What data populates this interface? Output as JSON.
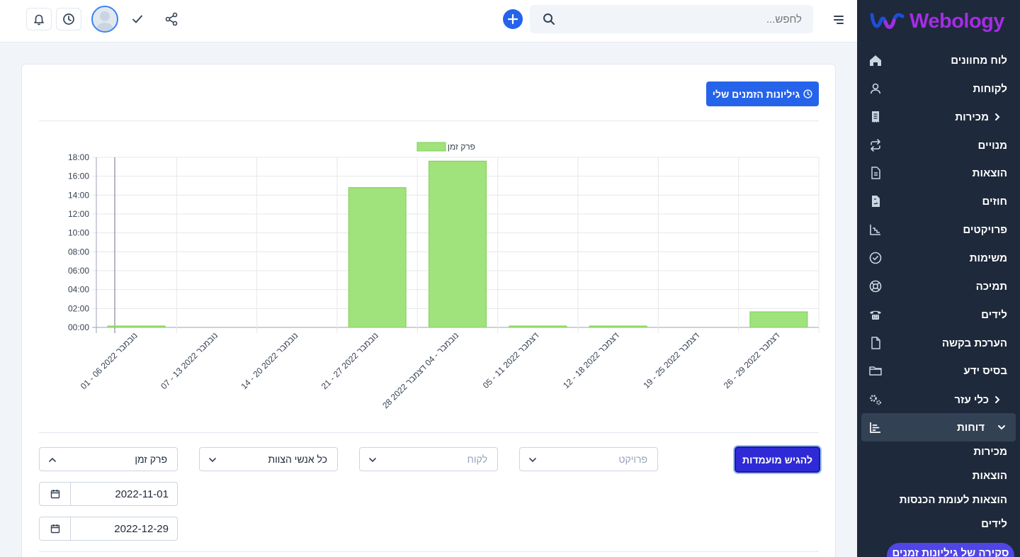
{
  "brand": {
    "name": "Webology",
    "logo_color": "#a32de3",
    "logo_mark_color": "#1d4ed8"
  },
  "sidebar": {
    "items": [
      {
        "label": "לוח מחוונים",
        "icon": "home-icon"
      },
      {
        "label": "לקוחות",
        "icon": "user-icon"
      },
      {
        "label": "מכירות",
        "icon": "receipt-icon",
        "expandable": true
      },
      {
        "label": "מנויים",
        "icon": "repeat-icon"
      },
      {
        "label": "הוצאות",
        "icon": "file-text-icon"
      },
      {
        "label": "חוזים",
        "icon": "file-contract-icon"
      },
      {
        "label": "פרויקטים",
        "icon": "chart-icon"
      },
      {
        "label": "משימות",
        "icon": "check-circle-icon"
      },
      {
        "label": "תמיכה",
        "icon": "lifebuoy-icon"
      },
      {
        "label": "לידים",
        "icon": "phone-icon"
      },
      {
        "label": "הערכת בקשה",
        "icon": "file-icon"
      },
      {
        "label": "בסיס ידע",
        "icon": "folder-icon"
      },
      {
        "label": "כלי עזר",
        "icon": "cogs-icon",
        "expandable": true
      },
      {
        "label": "דוחות",
        "icon": "bar-chart-icon",
        "expandable": true,
        "expanded": true
      }
    ],
    "reports_sub": [
      "מכירות",
      "הוצאות",
      "הוצאות לעומת הכנסות",
      "לידים"
    ],
    "active_sub": "סקירה של גיליונות זמנים"
  },
  "topbar": {
    "search_placeholder": "לחפש...",
    "icons": [
      "menu-icon",
      "search-icon",
      "plus-icon",
      "share-icon",
      "check-icon",
      "avatar",
      "clock-icon",
      "bell-icon"
    ]
  },
  "main": {
    "my_timesheets_label": "גיליונות הזמנים שלי",
    "filters": {
      "submit_label": "להגיש מועמדות",
      "project_placeholder": "פרויקט",
      "customer_placeholder": "לקוח",
      "staff_value": "כל אנשי הצוות",
      "period_value": "פרק זמן",
      "date_from": "2022-11-01",
      "date_to": "2022-12-29"
    }
  },
  "chart_data": {
    "type": "bar",
    "legend": [
      "פרק זמן"
    ],
    "legend_position": "top-center",
    "bar_color": "#a0e27b",
    "bar_border": "#7fcf56",
    "grid": true,
    "ylim": [
      0,
      18
    ],
    "ytick_labels": [
      "00:00",
      "02:00",
      "04:00",
      "06:00",
      "08:00",
      "10:00",
      "12:00",
      "14:00",
      "16:00",
      "18:00"
    ],
    "categories": [
      "01 - 06 נובמבר 2022",
      "07 - 13 נובמבר 2022",
      "14 - 20 נובמבר 2022",
      "21 - 27 נובמבר 2022",
      "28 נובמבר - 04 דצמבר 2022",
      "05 - 11 דצמבר 2022",
      "12 - 18 דצמבר 2022",
      "19 - 25 דצמבר 2022",
      "26 - 29 דצמבר 2022"
    ],
    "series": [
      {
        "name": "פרק זמן",
        "values": [
          0.15,
          0,
          0,
          14.8,
          17.6,
          0.15,
          0.15,
          0,
          1.65
        ]
      }
    ]
  }
}
